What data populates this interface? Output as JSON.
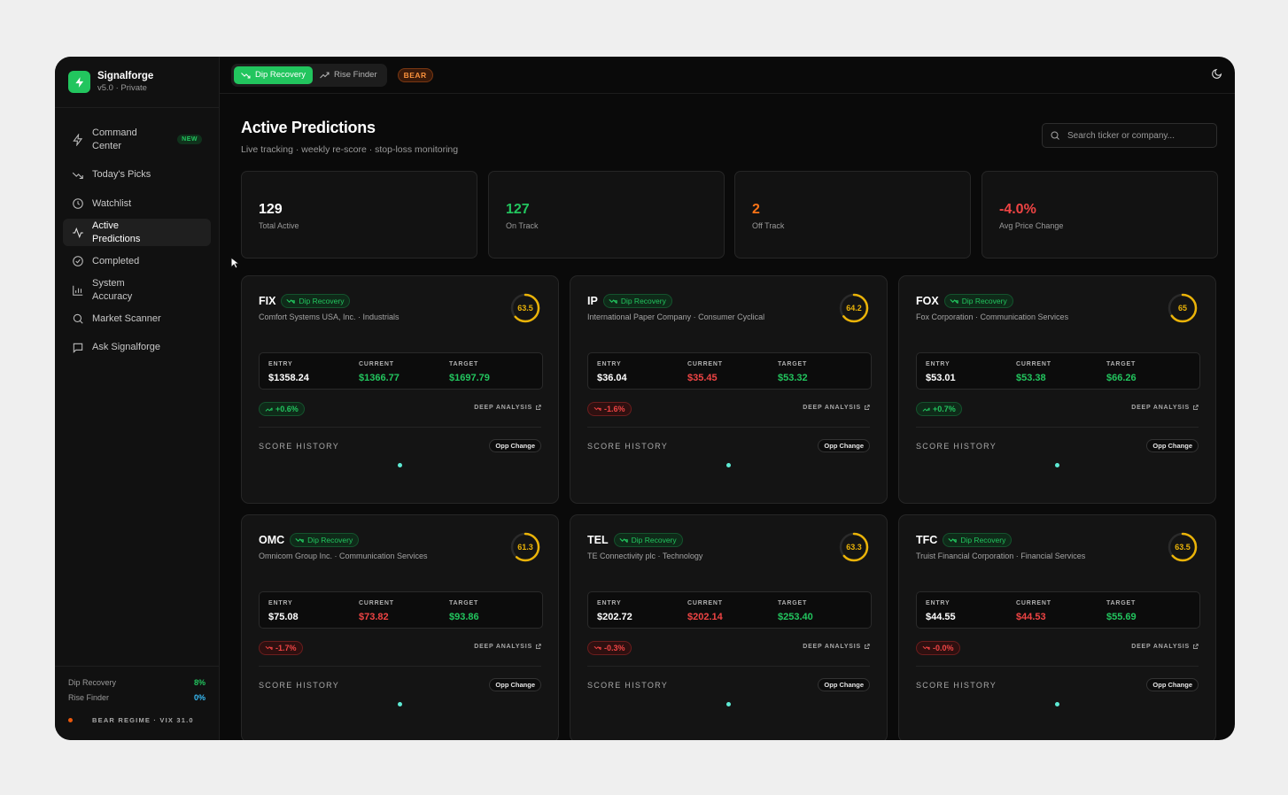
{
  "brand": {
    "name": "Signalforge",
    "version": "v5.0 · Private"
  },
  "nav": [
    {
      "label": "Command Center",
      "icon": "bolt-icon",
      "badge": "NEW"
    },
    {
      "label": "Today's Picks",
      "icon": "trend-down-icon"
    },
    {
      "label": "Watchlist",
      "icon": "clock-icon"
    },
    {
      "label": "Active Predictions",
      "icon": "activity-icon",
      "active": true
    },
    {
      "label": "Completed",
      "icon": "check-circle-icon"
    },
    {
      "label": "System Accuracy",
      "icon": "bar-chart-icon"
    },
    {
      "label": "Market Scanner",
      "icon": "search-icon"
    },
    {
      "label": "Ask Signalforge",
      "icon": "message-icon"
    }
  ],
  "footer": {
    "rows": [
      {
        "label": "Dip Recovery",
        "value": "8%",
        "color": "#22c55e"
      },
      {
        "label": "Rise Finder",
        "value": "0%",
        "color": "#38bdf8"
      }
    ],
    "regime": "BEAR REGIME · VIX 31.0"
  },
  "topbar": {
    "modes": [
      {
        "label": "Dip Recovery",
        "active": true
      },
      {
        "label": "Rise Finder",
        "active": false
      }
    ],
    "regime_badge": "BEAR"
  },
  "page": {
    "title": "Active Predictions",
    "subtitle": "Live tracking · weekly re-score · stop-loss monitoring",
    "search_placeholder": "Search ticker or company..."
  },
  "stats": [
    {
      "value": "129",
      "label": "Total Active",
      "color": "#ffffff"
    },
    {
      "value": "127",
      "label": "On Track",
      "color": "#22c55e"
    },
    {
      "value": "2",
      "label": "Off Track",
      "color": "#f97316"
    },
    {
      "value": "-4.0%",
      "label": "Avg Price Change",
      "color": "#ef4444"
    }
  ],
  "labels": {
    "entry": "ENTRY",
    "current": "CURRENT",
    "target": "TARGET",
    "deep_analysis": "DEEP ANALYSIS",
    "score_history": "SCORE HISTORY",
    "opp_change": "Opp Change",
    "strategy": "Dip Recovery"
  },
  "cards": [
    {
      "ticker": "FIX",
      "company": "Comfort Systems USA, Inc. · Industrials",
      "score": "63.5",
      "score_pct": 0.635,
      "entry": "$1358.24",
      "current": "$1366.77",
      "current_dir": "up",
      "target": "$1697.79",
      "change": "+0.6%",
      "change_dir": "up"
    },
    {
      "ticker": "IP",
      "company": "International Paper Company · Consumer Cyclical",
      "score": "64.2",
      "score_pct": 0.642,
      "entry": "$36.04",
      "current": "$35.45",
      "current_dir": "down",
      "target": "$53.32",
      "change": "-1.6%",
      "change_dir": "down"
    },
    {
      "ticker": "FOX",
      "company": "Fox Corporation · Communication Services",
      "score": "65",
      "score_pct": 0.65,
      "entry": "$53.01",
      "current": "$53.38",
      "current_dir": "up",
      "target": "$66.26",
      "change": "+0.7%",
      "change_dir": "up"
    },
    {
      "ticker": "OMC",
      "company": "Omnicom Group Inc. · Communication Services",
      "score": "61.3",
      "score_pct": 0.613,
      "entry": "$75.08",
      "current": "$73.82",
      "current_dir": "down",
      "target": "$93.86",
      "change": "-1.7%",
      "change_dir": "down"
    },
    {
      "ticker": "TEL",
      "company": "TE Connectivity plc · Technology",
      "score": "63.3",
      "score_pct": 0.633,
      "entry": "$202.72",
      "current": "$202.14",
      "current_dir": "down",
      "target": "$253.40",
      "change": "-0.3%",
      "change_dir": "down"
    },
    {
      "ticker": "TFC",
      "company": "Truist Financial Corporation · Financial Services",
      "score": "63.5",
      "score_pct": 0.635,
      "entry": "$44.55",
      "current": "$44.53",
      "current_dir": "down",
      "target": "$55.69",
      "change": "-0.0%",
      "change_dir": "down"
    }
  ]
}
